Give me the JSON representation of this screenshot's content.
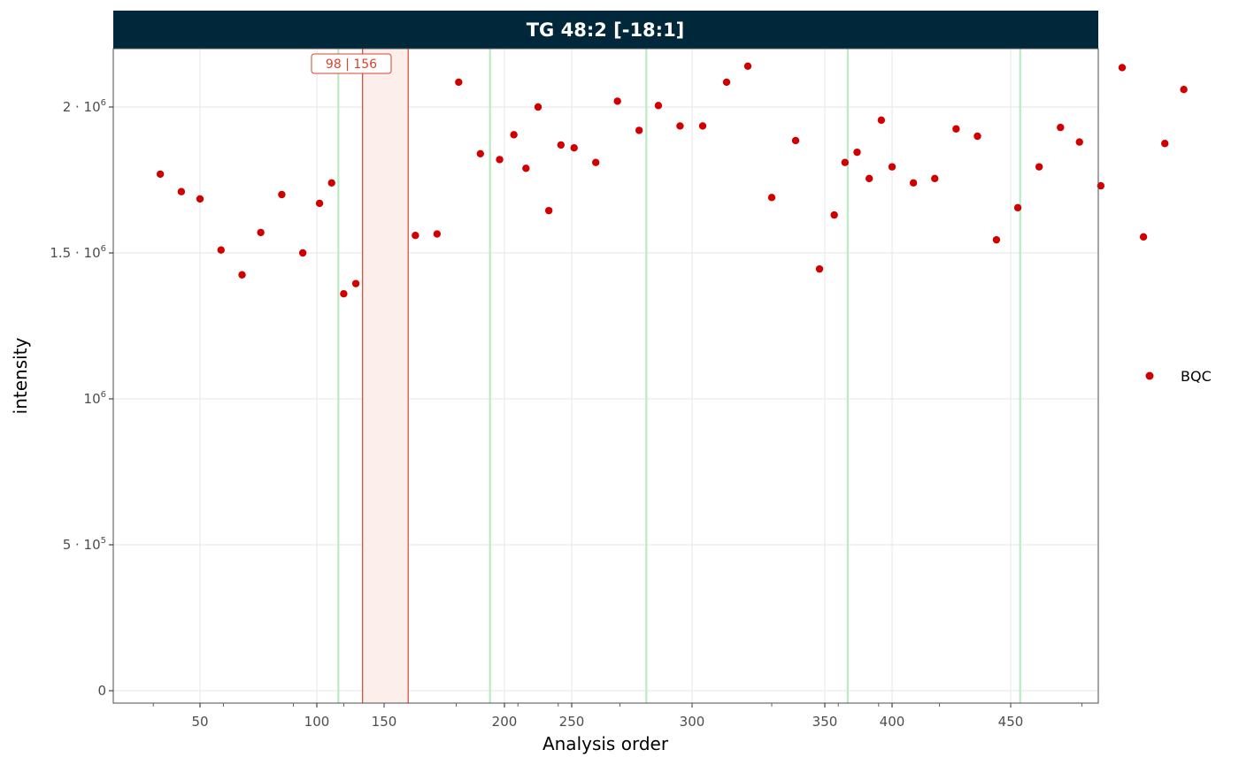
{
  "chart_data": {
    "type": "scatter",
    "title": "TG 48:2 [-18:1]",
    "xlabel": "Analysis order",
    "ylabel": "intensity",
    "x_ticks": [
      {
        "label": "50",
        "value": 50
      },
      {
        "label": "100",
        "value": 100
      },
      {
        "label": "150",
        "value": 150
      },
      {
        "label": "200",
        "value": 200
      },
      {
        "label": "250",
        "value": 250
      },
      {
        "label": "300",
        "value": 300
      },
      {
        "label": "350",
        "value": 350
      },
      {
        "label": "400",
        "value": 400
      },
      {
        "label": "450",
        "value": 450
      }
    ],
    "y_ticks": [
      {
        "base": "0",
        "exp": "",
        "value": 0
      },
      {
        "base": "5 · 10",
        "exp": "5",
        "value": 500000
      },
      {
        "base": "10",
        "exp": "6",
        "value": 1000000
      },
      {
        "base": "1.5 · 10",
        "exp": "6",
        "value": 1500000
      },
      {
        "base": "2 · 10",
        "exp": "6",
        "value": 2000000
      }
    ],
    "ylim": [
      -40000,
      2200000
    ],
    "grid": true,
    "legend_position": "right",
    "series": [
      {
        "name": "BQC",
        "color": "#d10000",
        "points": [
          [
            33,
            1770000
          ],
          [
            42,
            1710000
          ],
          [
            50,
            1685000
          ],
          [
            59,
            1510000
          ],
          [
            68,
            1425000
          ],
          [
            76,
            1570000
          ],
          [
            85,
            1700000
          ],
          [
            94,
            1500000
          ],
          [
            102,
            1670000
          ],
          [
            111,
            1740000
          ],
          [
            120,
            1360000
          ],
          [
            129,
            1395000
          ],
          [
            163,
            1560000
          ],
          [
            172,
            1565000
          ],
          [
            181,
            2085000
          ],
          [
            190,
            1840000
          ],
          [
            198,
            1820000
          ],
          [
            207,
            1905000
          ],
          [
            216,
            1790000
          ],
          [
            225,
            2000000
          ],
          [
            233,
            1645000
          ],
          [
            242,
            1870000
          ],
          [
            251,
            1860000
          ],
          [
            260,
            1810000
          ],
          [
            269,
            2020000
          ],
          [
            278,
            1920000
          ],
          [
            286,
            2005000
          ],
          [
            295,
            1935000
          ],
          [
            304,
            1935000
          ],
          [
            313,
            2085000
          ],
          [
            321,
            2140000
          ],
          [
            330,
            1690000
          ],
          [
            339,
            1885000
          ],
          [
            348,
            1445000
          ],
          [
            357,
            1630000
          ],
          [
            365,
            1810000
          ],
          [
            374,
            1845000
          ],
          [
            383,
            1755000
          ],
          [
            392,
            1955000
          ],
          [
            400,
            1795000
          ],
          [
            409,
            1740000
          ],
          [
            418,
            1755000
          ],
          [
            427,
            1925000
          ],
          [
            436,
            1900000
          ],
          [
            444,
            1545000
          ],
          [
            453,
            1655000
          ],
          [
            462,
            1795000
          ],
          [
            471,
            1930000
          ],
          [
            479,
            1880000
          ],
          [
            488,
            1730000
          ],
          [
            497,
            2135000
          ],
          [
            506,
            1555000
          ],
          [
            515,
            1875000
          ],
          [
            523,
            2060000
          ]
        ]
      }
    ],
    "batch_boundaries": [
      116,
      194,
      281,
      367,
      454
    ],
    "batch_color": "#b8ecc4",
    "highlight": {
      "label": "98 | 156",
      "x_range": [
        134,
        160
      ],
      "color": "#d9432c",
      "fill": "#fbeeeb"
    }
  },
  "colors": {
    "strip_bg": "#00273a",
    "grid": "#ebebeb",
    "border": "#4d4d4d"
  }
}
